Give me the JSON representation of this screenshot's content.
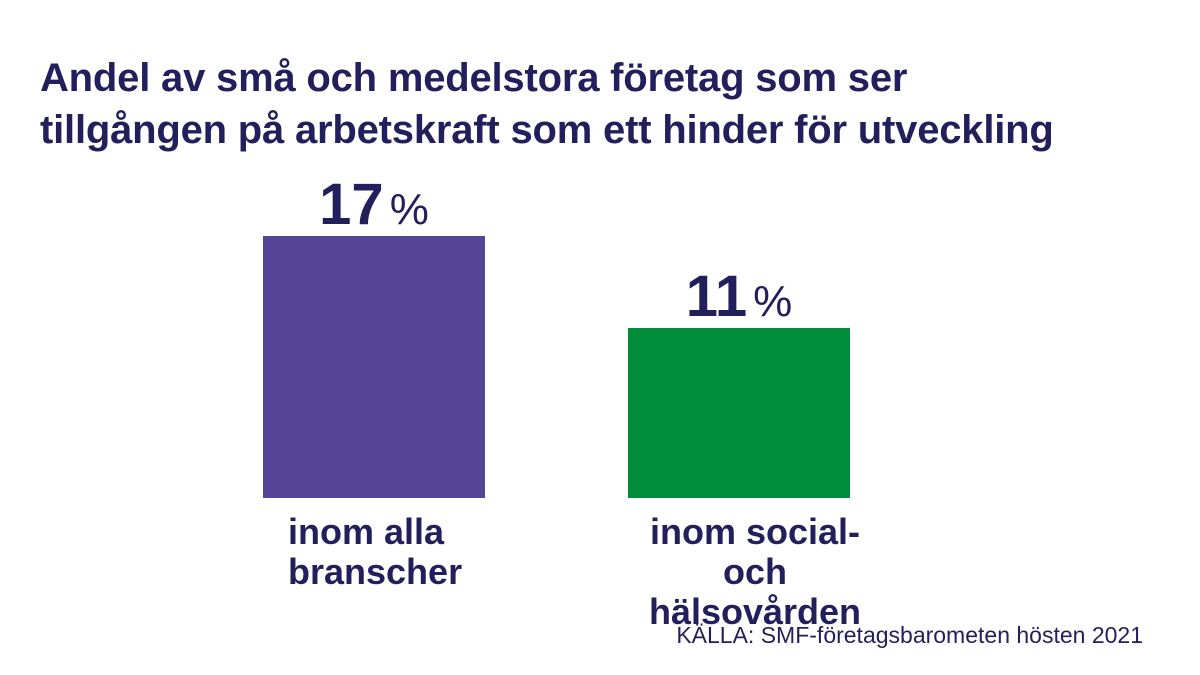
{
  "chart_data": {
    "type": "bar",
    "title": [
      "Andel av små och medelstora företag som ser",
      "tillgången på arbetskraft som ett hinder för utveckling"
    ],
    "categories": [
      [
        "inom alla",
        "branscher"
      ],
      [
        "inom social-",
        "och hälsovården"
      ]
    ],
    "values": [
      17,
      11
    ],
    "value_labels": [
      "17",
      "11"
    ],
    "unit": "%",
    "colors": [
      "#554596",
      "#008c3a"
    ],
    "text_color": "#231f5c",
    "ylim": [
      0,
      32
    ],
    "grid": false,
    "axes_visible": false,
    "source": "KÄLLA: SMF-företagsbarometen hösten 2021"
  }
}
